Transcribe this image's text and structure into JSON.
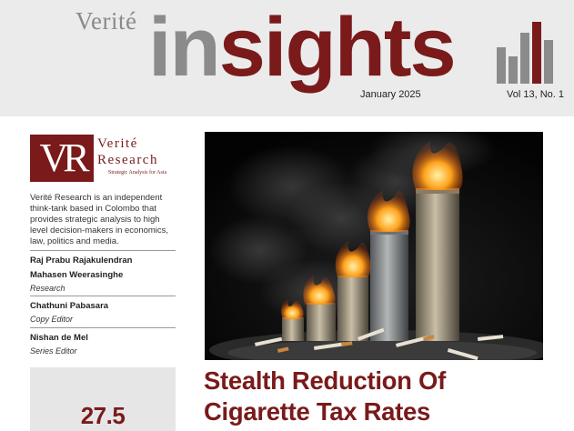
{
  "masthead": {
    "brand_small": "Verité",
    "brand_in": "in",
    "brand_sights": "sights",
    "date": "January 2025",
    "volume": "Vol 13, No. 1",
    "colors": {
      "accent": "#7a1a1a",
      "grey": "#8b8b8b",
      "background": "#ebebeb"
    },
    "icon": "bar-chart-icon"
  },
  "logo": {
    "monogram": "VR",
    "word1": "Verité",
    "word2": "Research",
    "tagline": "Strategic Analysis for Asia"
  },
  "about": "Verité Research is an independent think-tank based in Colombo that provides strategic analysis to high level decision-makers in economics, law, politics and media.",
  "credits": {
    "author1": "Raj Prabu Rajakulendran",
    "author2": "Mahasen Weerasinghe",
    "author_role": "Research",
    "copy_editor": "Chathuni Pabasara",
    "copy_editor_role": "Copy Editor",
    "series_editor": "Nishan de Mel",
    "series_editor_role": "Series Editor"
  },
  "stat": {
    "value": "27.5"
  },
  "article": {
    "headline_line1": "Stealth Reduction Of",
    "headline_line2": "Cigarette Tax Rates",
    "image_icon": "burning-cigarette-stacks-image"
  }
}
